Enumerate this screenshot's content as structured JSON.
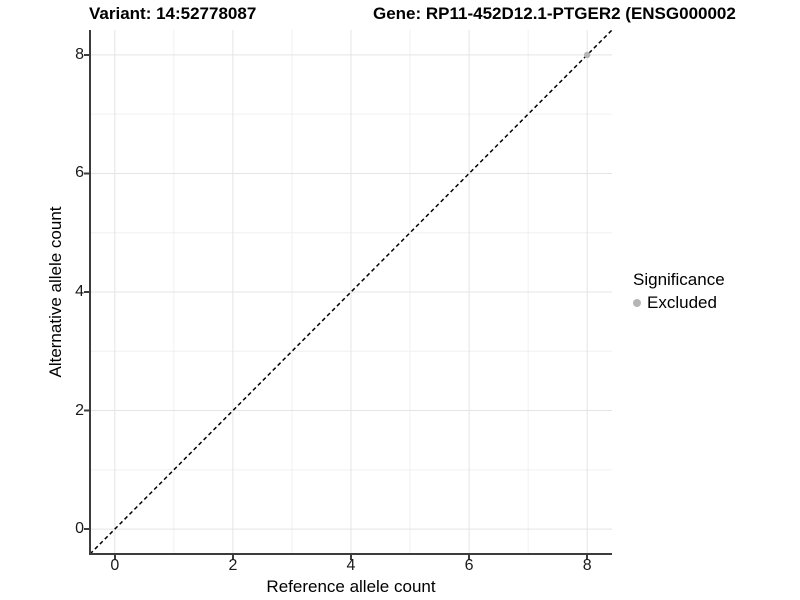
{
  "header": {
    "variant_title": "Variant: 14:52778087",
    "gene_title": "Gene: RP11-452D12.1-PTGER2 (ENSG000002"
  },
  "chart_data": {
    "type": "scatter",
    "xlabel": "Reference allele count",
    "ylabel": "Alternative allele count",
    "xlim": [
      -0.42,
      8.42
    ],
    "ylim": [
      -0.42,
      8.42
    ],
    "xticks": [
      0,
      2,
      4,
      6,
      8
    ],
    "yticks": [
      0,
      2,
      4,
      6,
      8
    ],
    "minor_gridlines_x": [
      1,
      3,
      5,
      7
    ],
    "minor_gridlines_y": [
      1,
      3,
      5,
      7
    ],
    "grid": "on",
    "reference_line": {
      "type": "identity",
      "style": "dashed",
      "x1": -0.42,
      "y1": -0.42,
      "x2": 8.42,
      "y2": 8.42,
      "color": "#000000"
    },
    "series": [
      {
        "name": "Excluded",
        "color": "#b5b5b5",
        "marker": "circle",
        "points": [
          [
            8,
            8
          ]
        ]
      }
    ],
    "legend": {
      "title": "Significance",
      "position": "right",
      "entries": [
        {
          "label": "Excluded",
          "color": "#b5b5b5"
        }
      ]
    },
    "style": {
      "grid_major_color": "#e4e4e4",
      "grid_minor_color": "#f0f0f0",
      "axis_color": "#3c3c3c",
      "point_radius": 3.2
    }
  }
}
